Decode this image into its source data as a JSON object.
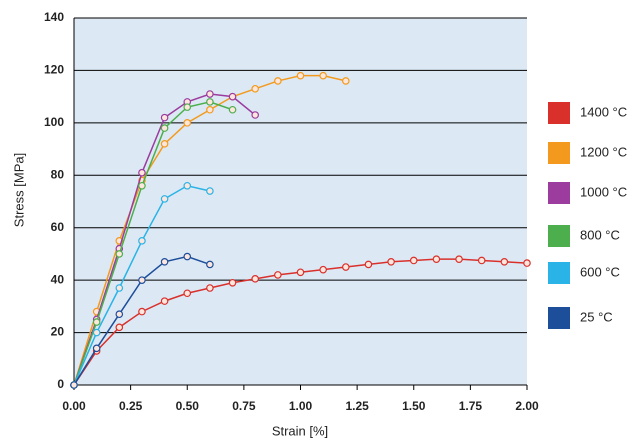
{
  "chart_data": {
    "type": "line",
    "xlabel": "Strain [%]",
    "ylabel": "Stress [MPa]",
    "x": [
      0,
      0.1,
      0.2,
      0.3,
      0.4,
      0.5,
      0.6,
      0.7,
      0.8,
      0.9,
      1.0,
      1.1,
      1.2,
      1.3,
      1.4,
      1.5,
      1.6,
      1.7,
      1.8,
      1.9,
      2.0
    ],
    "series": [
      {
        "name": "1400 °C",
        "color": "#d9302c",
        "values": [
          0,
          13,
          22,
          28,
          32,
          35,
          37,
          39,
          40.5,
          42,
          43,
          44,
          45,
          46,
          47,
          47.5,
          48,
          48,
          47.5,
          47,
          46.5
        ]
      },
      {
        "name": "1200 °C",
        "color": "#f39a1e",
        "values": [
          0,
          28,
          55,
          78,
          92,
          100,
          105,
          110,
          113,
          116,
          118,
          118,
          116,
          null,
          null,
          null,
          null,
          null,
          null,
          null,
          null
        ]
      },
      {
        "name": "1000 °C",
        "color": "#9b3c9e",
        "values": [
          0,
          25,
          52,
          81,
          102,
          108,
          111,
          110,
          103,
          null,
          null,
          null,
          null,
          null,
          null,
          null,
          null,
          null,
          null,
          null,
          null
        ]
      },
      {
        "name": "800 °C",
        "color": "#4cae4c",
        "values": [
          0,
          24,
          50,
          76,
          98,
          106,
          108,
          105,
          null,
          null,
          null,
          null,
          null,
          null,
          null,
          null,
          null,
          null,
          null,
          null,
          null
        ]
      },
      {
        "name": "600 °C",
        "color": "#29b3e6",
        "values": [
          0,
          20,
          37,
          55,
          71,
          76,
          74,
          null,
          null,
          null,
          null,
          null,
          null,
          null,
          null,
          null,
          null,
          null,
          null,
          null,
          null
        ]
      },
      {
        "name": "25 °C",
        "color": "#1d4e9a",
        "values": [
          0,
          14,
          27,
          40,
          47,
          49,
          46,
          null,
          null,
          null,
          null,
          null,
          null,
          null,
          null,
          null,
          null,
          null,
          null,
          null,
          null
        ]
      }
    ],
    "xlim": [
      0,
      2
    ],
    "xticks": [
      {
        "value": 0,
        "label": "0.00"
      },
      {
        "value": 0.25,
        "label": "0.25"
      },
      {
        "value": 0.5,
        "label": "0.50"
      },
      {
        "value": 0.75,
        "label": "0.75"
      },
      {
        "value": 1,
        "label": "1.00"
      },
      {
        "value": 1.25,
        "label": "1.25"
      },
      {
        "value": 1.5,
        "label": "1.50"
      },
      {
        "value": 1.75,
        "label": "1.75"
      },
      {
        "value": 2,
        "label": "2.00"
      }
    ],
    "ylim": [
      0,
      140
    ],
    "yticks": [
      0,
      20,
      40,
      60,
      80,
      100,
      120,
      140
    ],
    "grid": true,
    "legend": "right"
  }
}
